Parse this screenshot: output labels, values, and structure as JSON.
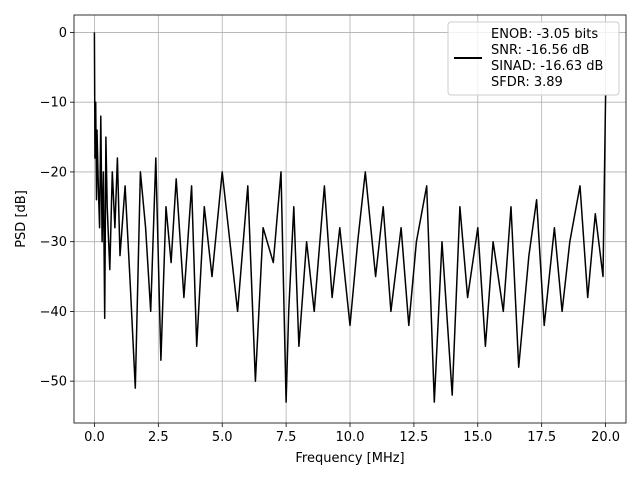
{
  "chart_data": {
    "type": "line",
    "xlabel": "Frequency [MHz]",
    "ylabel": "PSD [dB]",
    "xlim": [
      -0.8,
      20.8
    ],
    "ylim": [
      -56,
      2.5
    ],
    "xticks": [
      0.0,
      2.5,
      5.0,
      7.5,
      10.0,
      12.5,
      15.0,
      17.5,
      20.0
    ],
    "xtick_labels": [
      "0.0",
      "2.5",
      "5.0",
      "7.5",
      "10.0",
      "12.5",
      "15.0",
      "17.5",
      "20.0"
    ],
    "yticks": [
      0,
      -10,
      -20,
      -30,
      -40,
      -50
    ],
    "ytick_labels": [
      "0",
      "−10",
      "−20",
      "−30",
      "−40",
      "−50"
    ],
    "grid": true,
    "legend_position": "top-right",
    "legend_lines": [
      "ENOB: -3.05 bits",
      "SNR: -16.56 dB",
      "SINAD: -16.63 dB",
      "SFDR: 3.89"
    ],
    "line_color": "#000000",
    "series": [
      {
        "x": [
          0.0,
          0.02,
          0.05,
          0.08,
          0.1,
          0.15,
          0.2,
          0.25,
          0.3,
          0.35,
          0.4,
          0.45,
          0.5,
          0.6,
          0.7,
          0.8,
          0.9,
          1.0,
          1.2,
          1.4,
          1.6,
          1.8,
          2.0,
          2.2,
          2.4,
          2.6,
          2.8,
          3.0,
          3.2,
          3.5,
          3.8,
          4.0,
          4.3,
          4.6,
          5.0,
          5.3,
          5.6,
          6.0,
          6.3,
          6.6,
          7.0,
          7.3,
          7.5,
          7.6,
          7.8,
          8.0,
          8.3,
          8.6,
          9.0,
          9.3,
          9.6,
          10.0,
          10.3,
          10.6,
          11.0,
          11.3,
          11.6,
          12.0,
          12.3,
          12.6,
          13.0,
          13.3,
          13.6,
          14.0,
          14.3,
          14.6,
          15.0,
          15.3,
          15.6,
          16.0,
          16.3,
          16.6,
          17.0,
          17.3,
          17.6,
          18.0,
          18.3,
          18.6,
          19.0,
          19.3,
          19.6,
          19.9,
          20.0
        ],
        "y": [
          0,
          -18,
          -10,
          -24,
          -14,
          -22,
          -28,
          -12,
          -30,
          -20,
          -41,
          -15,
          -25,
          -34,
          -20,
          -28,
          -18,
          -32,
          -22,
          -36,
          -51,
          -20,
          -28,
          -40,
          -18,
          -47,
          -25,
          -33,
          -21,
          -38,
          -22,
          -45,
          -25,
          -35,
          -20,
          -30,
          -40,
          -22,
          -50,
          -28,
          -33,
          -20,
          -53,
          -40,
          -25,
          -45,
          -30,
          -40,
          -22,
          -38,
          -28,
          -42,
          -30,
          -20,
          -35,
          -25,
          -40,
          -28,
          -42,
          -30,
          -22,
          -53,
          -30,
          -52,
          -25,
          -38,
          -28,
          -45,
          -30,
          -40,
          -25,
          -48,
          -32,
          -24,
          -42,
          -28,
          -40,
          -30,
          -22,
          -38,
          -26,
          -35,
          -9
        ]
      }
    ]
  }
}
